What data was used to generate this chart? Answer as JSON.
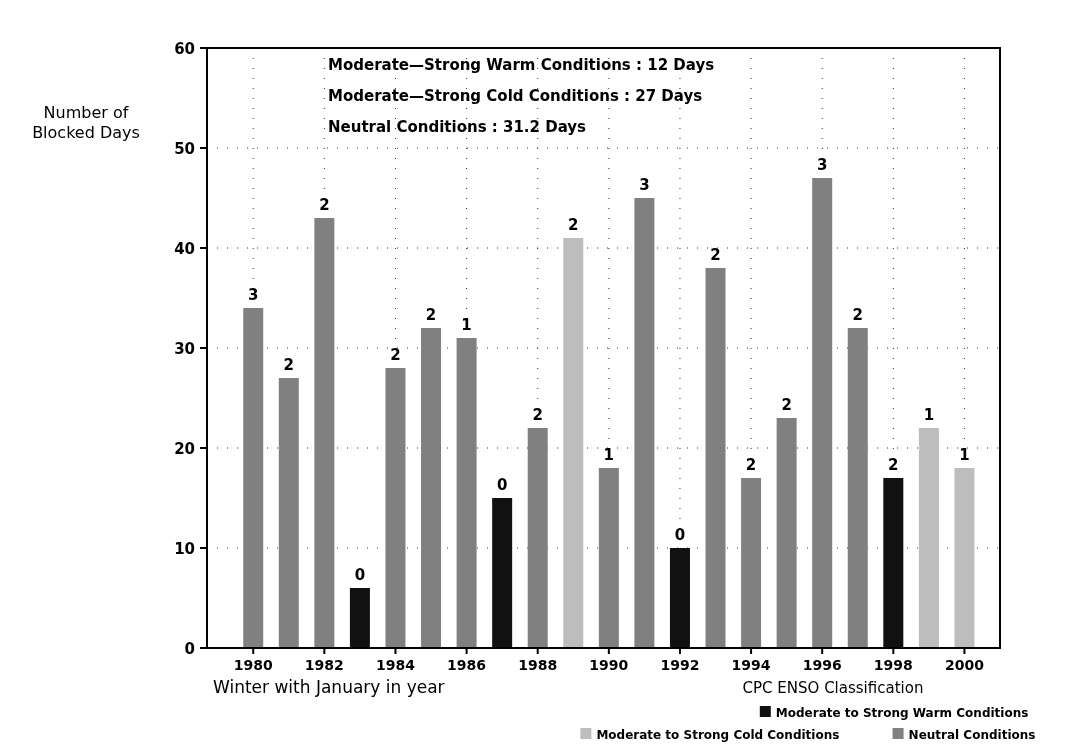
{
  "chart_data": {
    "type": "bar",
    "xlabel": "Winter with January in year",
    "ylabel": "Number of Blocked Days",
    "legend_title": "CPC ENSO Classification",
    "annotations": [
      "Moderate—Strong Warm Conditions : 12 Days",
      "Moderate—Strong Cold Conditions : 27 Days",
      "Neutral Conditions : 31.2 Days",
      {
        "text": "3",
        "x": 1980,
        "y": 34
      },
      {
        "text": "2",
        "x": 1981,
        "y": 27
      },
      {
        "text": "2",
        "x": 1982,
        "y": 43
      },
      {
        "text": "0",
        "x": 1983,
        "y": 6
      },
      {
        "text": "2",
        "x": 1984,
        "y": 28
      },
      {
        "text": "2",
        "x": 1985,
        "y": 32
      },
      {
        "text": "1",
        "x": 1986,
        "y": 31
      },
      {
        "text": "0",
        "x": 1987,
        "y": 15
      },
      {
        "text": "2",
        "x": 1988,
        "y": 22
      },
      {
        "text": "2",
        "x": 1989,
        "y": 41
      },
      {
        "text": "1",
        "x": 1990,
        "y": 18
      },
      {
        "text": "3",
        "x": 1991,
        "y": 45
      },
      {
        "text": "0",
        "x": 1992,
        "y": 10
      },
      {
        "text": "2",
        "x": 1993,
        "y": 38
      },
      {
        "text": "2",
        "x": 1994,
        "y": 17
      },
      {
        "text": "2",
        "x": 1995,
        "y": 23
      },
      {
        "text": "3",
        "x": 1996,
        "y": 47
      },
      {
        "text": "2",
        "x": 1997,
        "y": 32
      },
      {
        "text": "2",
        "x": 1998,
        "y": 17
      },
      {
        "text": "1",
        "x": 1999,
        "y": 22
      },
      {
        "text": "1",
        "x": 2000,
        "y": 18
      }
    ],
    "xlim": [
      1978.7,
      2001
    ],
    "xticks": [
      1980,
      1982,
      1984,
      1986,
      1988,
      1990,
      1992,
      1994,
      1996,
      1998,
      2000
    ],
    "ylim": [
      0,
      60
    ],
    "yticks": [
      0,
      10,
      20,
      30,
      40,
      50,
      60
    ],
    "grid": true,
    "legend": "bottom right",
    "series": [
      {
        "name": "Moderate to Strong Warm Conditions",
        "color": "#111111",
        "x": [
          1983,
          1987,
          1992,
          1998
        ],
        "values": [
          6,
          15,
          10,
          17
        ]
      },
      {
        "name": "Moderate to Strong Cold Conditions",
        "color": "#bdbdbd",
        "x": [
          1989,
          1999,
          2000
        ],
        "values": [
          41,
          22,
          18
        ]
      },
      {
        "name": "Neutral Conditions",
        "color": "#808080",
        "x": [
          1980,
          1981,
          1982,
          1984,
          1985,
          1986,
          1988,
          1990,
          1991,
          1993,
          1994,
          1995,
          1996,
          1997
        ],
        "values": [
          34,
          27,
          43,
          28,
          32,
          31,
          22,
          18,
          45,
          38,
          17,
          23,
          47,
          32
        ]
      }
    ]
  }
}
